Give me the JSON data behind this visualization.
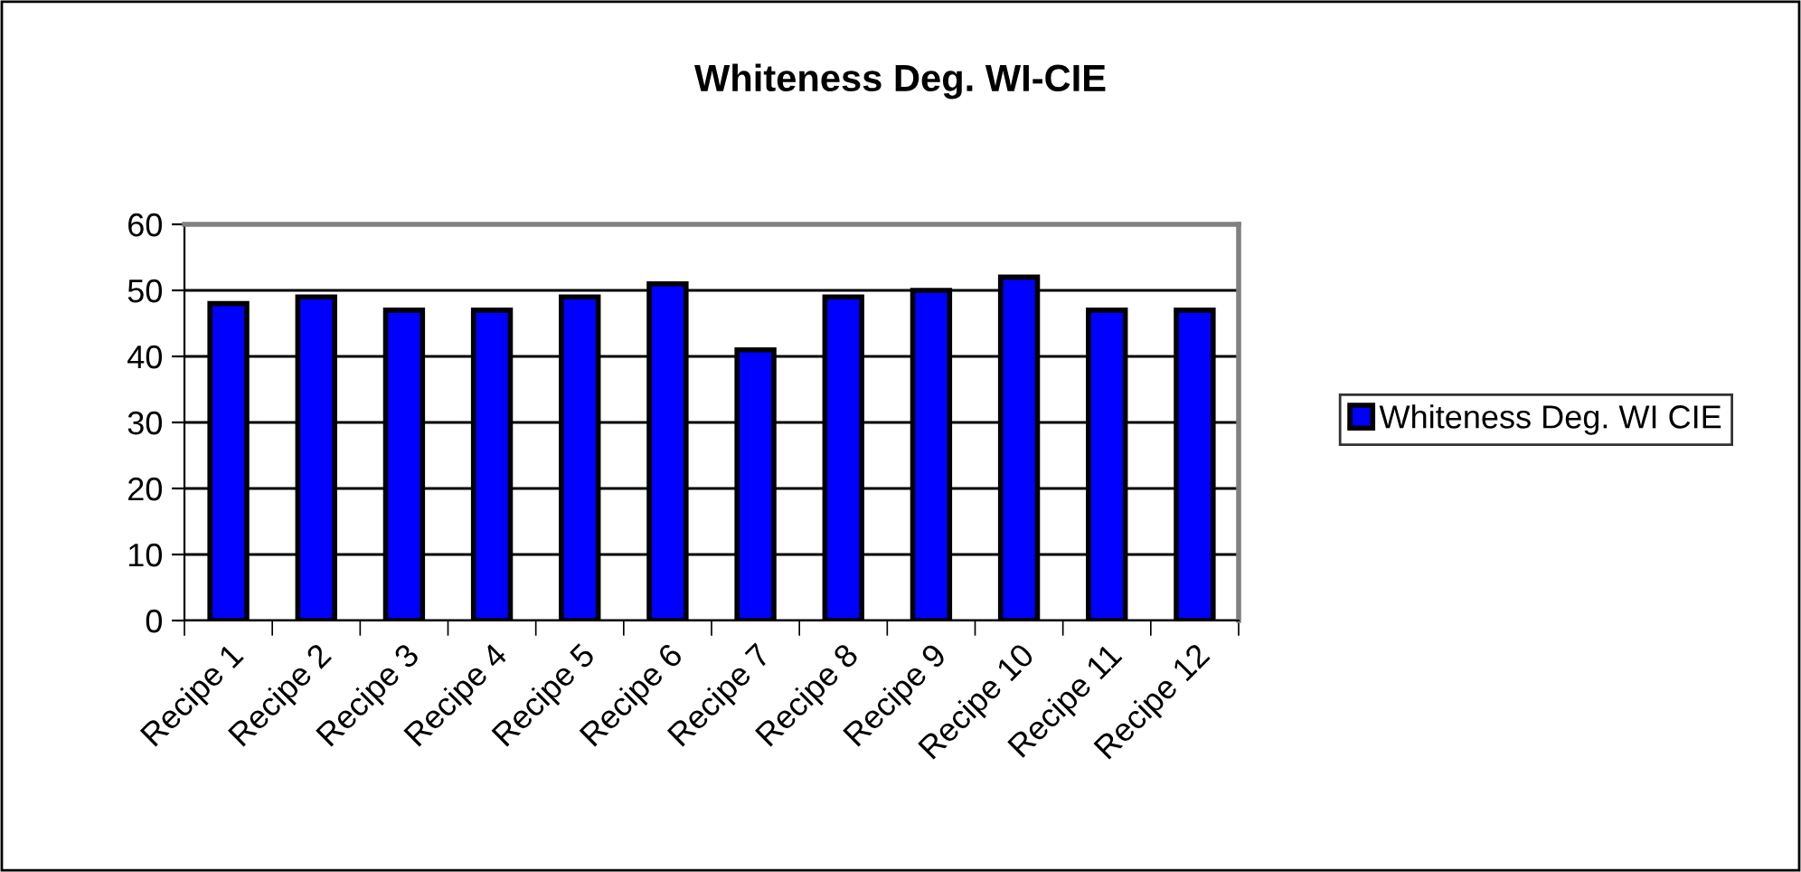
{
  "chart_data": {
    "type": "bar",
    "title": "Whiteness Deg. WI-CIE",
    "categories": [
      "Recipe 1",
      "Recipe 2",
      "Recipe 3",
      "Recipe 4",
      "Recipe 5",
      "Recipe 6",
      "Recipe 7",
      "Recipe 8",
      "Recipe 9",
      "Recipe 10",
      "Recipe 11",
      "Recipe 12"
    ],
    "series": [
      {
        "name": "Whiteness Deg. WI CIE",
        "color": "#0000ff",
        "values": [
          48,
          49,
          47,
          47,
          49,
          51,
          41,
          49,
          50,
          52,
          47,
          47
        ]
      }
    ],
    "ylim": [
      0,
      60
    ],
    "yticks": [
      0,
      10,
      20,
      30,
      40,
      50,
      60
    ],
    "grid": "y",
    "legend": "right"
  }
}
